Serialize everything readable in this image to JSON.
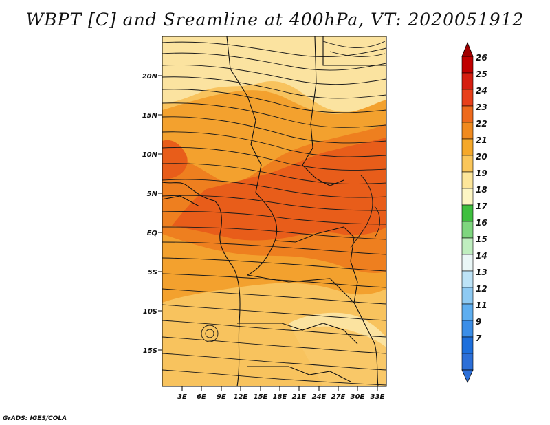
{
  "title": "WBPT [C] and Sreamline at 400hPa, VT: 2020051912",
  "credit": "GrADS: IGES/COLA",
  "map": {
    "lat_labels": [
      "20N",
      "15N",
      "10N",
      "5N",
      "EQ",
      "5S",
      "10S",
      "15S"
    ],
    "lon_labels": [
      "3E",
      "6E",
      "9E",
      "12E",
      "15E",
      "18E",
      "21E",
      "24E",
      "27E",
      "30E",
      "33E"
    ],
    "field_colors": {
      "c19": "#fbe3a0",
      "c20": "#f8c35e",
      "c21": "#f3a12e",
      "c22": "#ee7f1f",
      "c23": "#e85d1a"
    }
  },
  "colorbar": {
    "labels": [
      "26",
      "25",
      "24",
      "23",
      "22",
      "21",
      "20",
      "19",
      "18",
      "17",
      "16",
      "15",
      "14",
      "13",
      "12",
      "11",
      "9",
      "7"
    ],
    "colors": [
      "#c00000",
      "#d61e10",
      "#e8401a",
      "#ee6a1c",
      "#f08a1e",
      "#f5a82a",
      "#fac65a",
      "#fde69a",
      "#fdf6c4",
      "#3fbf3f",
      "#7fd67f",
      "#bfeebf",
      "#eaf7f7",
      "#bde3f7",
      "#8ecaf3",
      "#5eaef0",
      "#3b8ee8",
      "#1d6fdc",
      "#2c6fd8"
    ],
    "top_triangle_color": "#a00000",
    "bottom_triangle_color": "#2c6fd8"
  }
}
